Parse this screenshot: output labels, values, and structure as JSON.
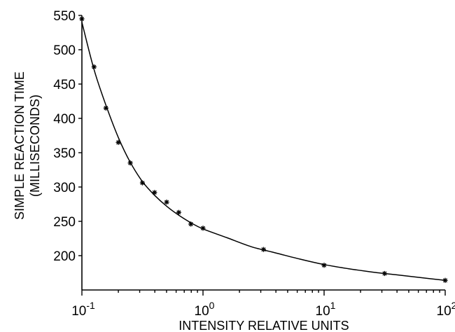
{
  "chart_data": {
    "type": "scatter",
    "title": "",
    "xlabel": "INTENSITY RELATIVE UNITS",
    "ylabel_line1": "SIMPLE REACTION TIME",
    "ylabel_line2": "(MILLISECONDS)",
    "x_scale": "log",
    "xlim": [
      0.1,
      100
    ],
    "ylim": [
      150,
      550
    ],
    "x_ticks": [
      {
        "value": 0.1,
        "base": "10",
        "exp": "-1"
      },
      {
        "value": 1,
        "base": "10",
        "exp": "0"
      },
      {
        "value": 10,
        "base": "10",
        "exp": "1"
      },
      {
        "value": 100,
        "base": "10",
        "exp": "2"
      }
    ],
    "y_ticks": [
      200,
      250,
      300,
      350,
      400,
      450,
      500,
      550
    ],
    "y_tick_labels": [
      "200",
      "250",
      "300",
      "350",
      "400",
      "450",
      "500",
      "550"
    ],
    "grid": false,
    "legend": "none",
    "series": [
      {
        "kind": "points",
        "marker": "asterisk",
        "x": [
          0.1,
          0.126,
          0.158,
          0.2,
          0.251,
          0.316,
          0.398,
          0.501,
          0.631,
          0.794,
          1.0,
          3.16,
          10.0,
          31.6,
          100
        ],
        "y": [
          545,
          475,
          415,
          365,
          335,
          306,
          292,
          278,
          263,
          246,
          240,
          209,
          186,
          174,
          164
        ]
      },
      {
        "kind": "fitted-curve",
        "x": [
          0.1,
          0.126,
          0.158,
          0.2,
          0.251,
          0.316,
          0.398,
          0.501,
          0.631,
          0.794,
          1.0,
          1.585,
          2.512,
          3.981,
          6.31,
          10,
          15.85,
          25.12,
          39.81,
          63.1,
          100
        ],
        "y": [
          540,
          471,
          419,
          372,
          336,
          308,
          288,
          272,
          259,
          248,
          239,
          226,
          213,
          204,
          195,
          187,
          181,
          176,
          172,
          168,
          164
        ]
      }
    ]
  }
}
